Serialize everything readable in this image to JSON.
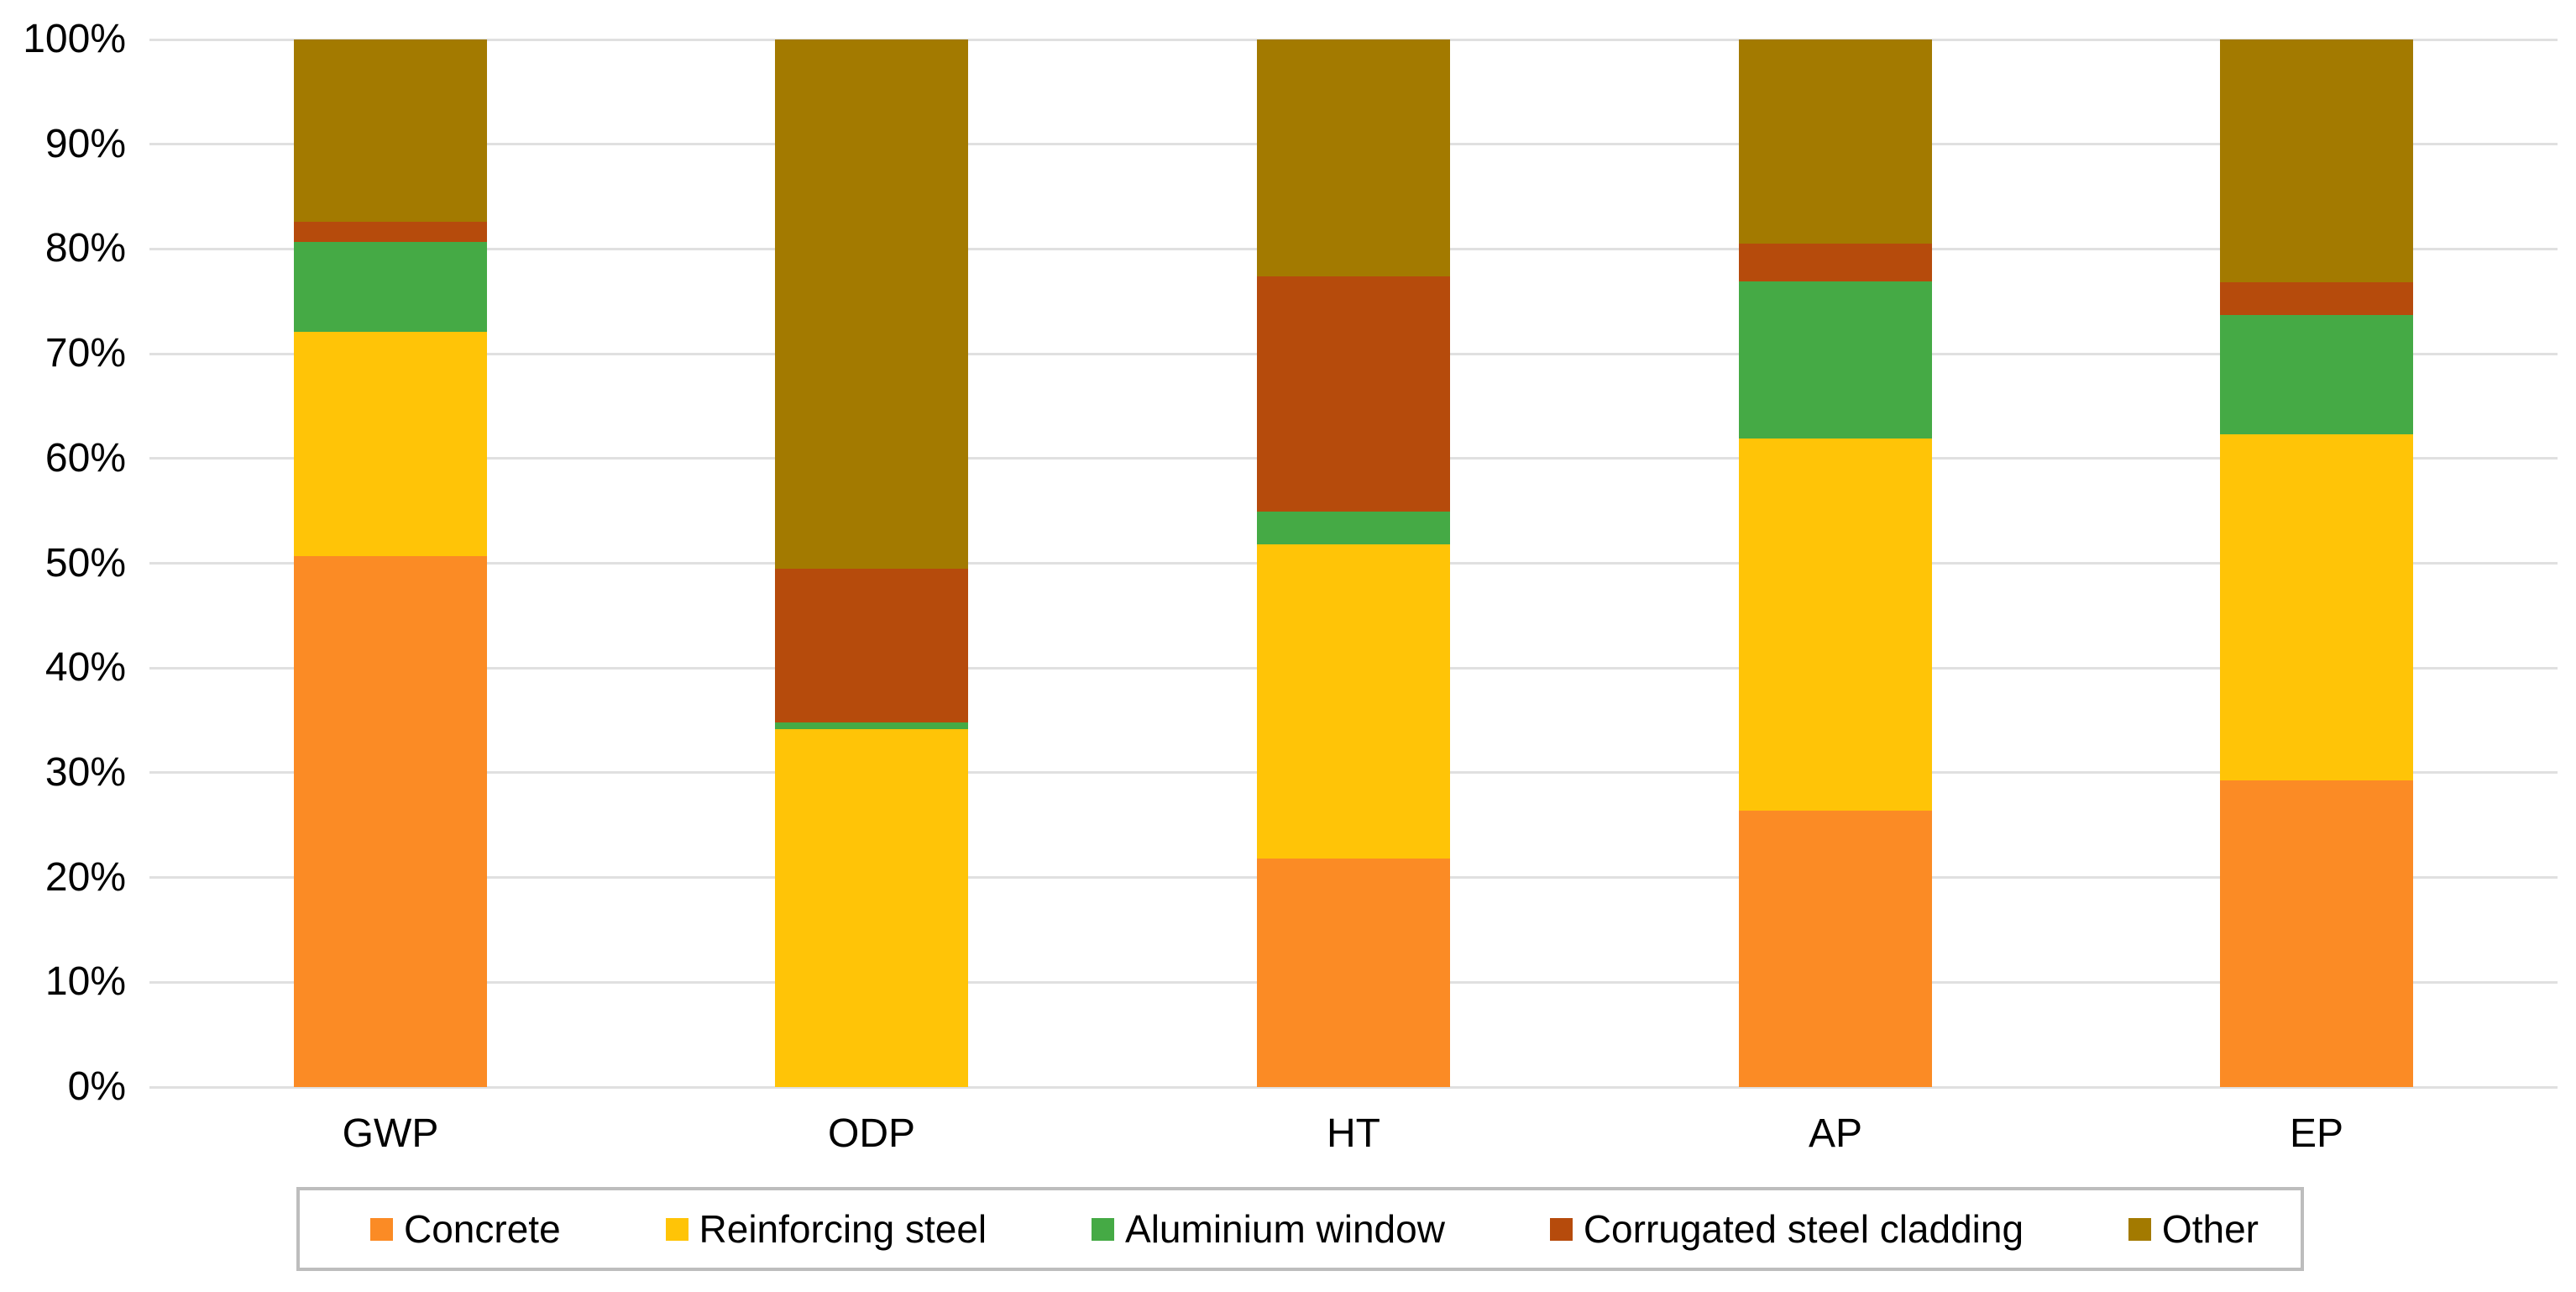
{
  "chart_data": {
    "type": "bar",
    "variant": "stacked-100-percent-column",
    "title": "",
    "xlabel": "",
    "ylabel": "",
    "categories": [
      "GWP",
      "ODP",
      "HT",
      "AP",
      "EP"
    ],
    "series": [
      {
        "name": "Concrete",
        "color": "#FB8B25",
        "values": [
          50.7,
          0.0,
          21.8,
          26.4,
          29.3
        ]
      },
      {
        "name": "Reinforcing steel",
        "color": "#FFC407",
        "values": [
          21.4,
          34.2,
          30.0,
          35.5,
          33.0
        ]
      },
      {
        "name": "Aluminium window",
        "color": "#45AA45",
        "values": [
          8.6,
          0.6,
          3.1,
          15.0,
          11.4
        ]
      },
      {
        "name": "Corrugated steel cladding",
        "color": "#B64B0C",
        "values": [
          1.9,
          14.7,
          22.5,
          3.6,
          3.1
        ]
      },
      {
        "name": "Other",
        "color": "#A37A00",
        "values": [
          17.4,
          50.5,
          22.6,
          19.5,
          23.2
        ]
      }
    ],
    "y_ticks": [
      "100%",
      "90%",
      "80%",
      "70%",
      "60%",
      "50%",
      "40%",
      "30%",
      "20%",
      "10%",
      "0%"
    ],
    "ylim": [
      0,
      100
    ],
    "grid": true,
    "gridline_color": "#E0E0E0",
    "legend_position": "bottom",
    "legend_border_color": "#BDBDBD",
    "text_color": "#000000",
    "background_color": "#FFFFFF"
  }
}
